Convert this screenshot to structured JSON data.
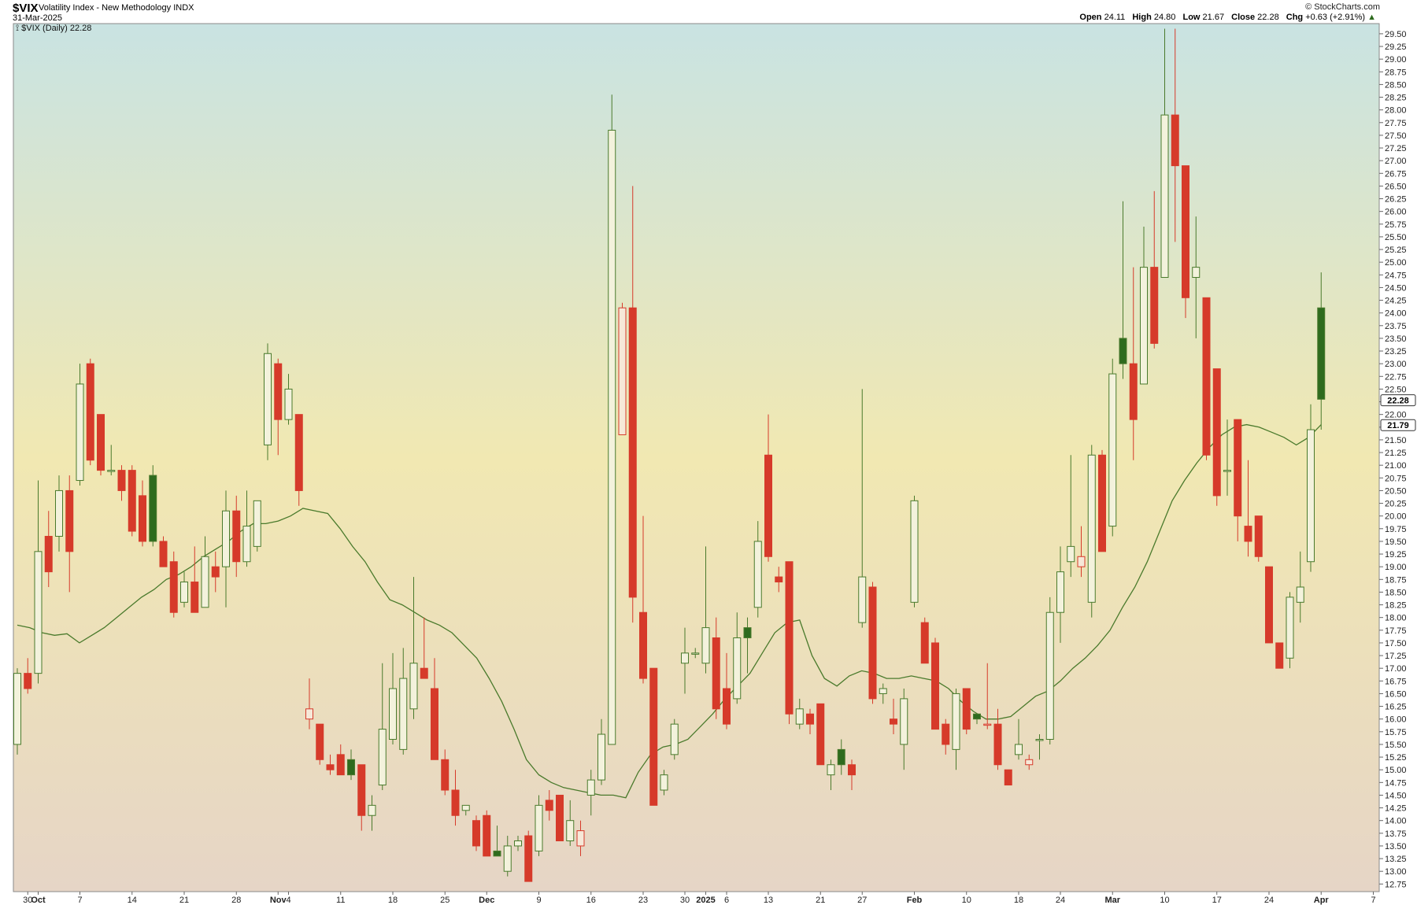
{
  "header": {
    "symbol": "$VIX",
    "description": "Volatility Index - New Methodology",
    "exchange": "INDX",
    "date": "31-Mar-2025",
    "brand": "© StockCharts.com",
    "open_label": "Open",
    "open": "24.11",
    "high_label": "High",
    "high": "24.80",
    "low_label": "Low",
    "low": "21.67",
    "close_label": "Close",
    "close": "22.28",
    "chg_label": "Chg",
    "chg": "+0.63 (+2.91%)",
    "chg_arrow": "▲"
  },
  "legend": {
    "icon": "candlestick-icon",
    "text": "$VIX (Daily) 22.28"
  },
  "colors": {
    "up": "#2e6b1e",
    "down": "#d63a2a",
    "ma": "#4a7a2c",
    "bg_top": "#c9e3e2",
    "bg_mid": "#f1e8b2",
    "bg_bottom": "#e6d5c6"
  },
  "chart_data": {
    "type": "candlestick",
    "title": "$VIX (Daily) 22.28",
    "ylim": [
      12.6,
      29.7
    ],
    "y_ticks": [
      "12.75",
      "13.00",
      "13.25",
      "13.50",
      "13.75",
      "14.00",
      "14.25",
      "14.50",
      "14.75",
      "15.00",
      "15.25",
      "15.50",
      "15.75",
      "16.00",
      "16.25",
      "16.50",
      "16.75",
      "17.00",
      "17.25",
      "17.50",
      "17.75",
      "18.00",
      "18.25",
      "18.50",
      "18.75",
      "19.00",
      "19.25",
      "19.50",
      "19.75",
      "20.00",
      "20.25",
      "20.50",
      "20.75",
      "21.00",
      "21.25",
      "21.50",
      "21.75",
      "22.00",
      "22.25",
      "22.50",
      "22.75",
      "23.00",
      "23.25",
      "23.50",
      "23.75",
      "24.00",
      "24.25",
      "24.50",
      "24.75",
      "25.00",
      "25.25",
      "25.50",
      "25.75",
      "26.00",
      "26.25",
      "26.50",
      "26.75",
      "27.00",
      "27.25",
      "27.50",
      "27.75",
      "28.00",
      "28.25",
      "28.50",
      "28.75",
      "29.00",
      "29.25",
      "29.50"
    ],
    "x_ticks": [
      {
        "i": 1,
        "label": "30",
        "bold": false
      },
      {
        "i": 2,
        "label": "Oct",
        "bold": true
      },
      {
        "i": 6,
        "label": "7",
        "bold": false
      },
      {
        "i": 11,
        "label": "14",
        "bold": false
      },
      {
        "i": 16,
        "label": "21",
        "bold": false
      },
      {
        "i": 21,
        "label": "28",
        "bold": false
      },
      {
        "i": 25,
        "label": "Nov",
        "bold": true
      },
      {
        "i": 26,
        "label": "4",
        "bold": false
      },
      {
        "i": 31,
        "label": "11",
        "bold": false
      },
      {
        "i": 36,
        "label": "18",
        "bold": false
      },
      {
        "i": 41,
        "label": "25",
        "bold": false
      },
      {
        "i": 45,
        "label": "Dec",
        "bold": true
      },
      {
        "i": 50,
        "label": "9",
        "bold": false
      },
      {
        "i": 55,
        "label": "16",
        "bold": false
      },
      {
        "i": 60,
        "label": "23",
        "bold": false
      },
      {
        "i": 64,
        "label": "30",
        "bold": false
      },
      {
        "i": 66,
        "label": "2025",
        "bold": true
      },
      {
        "i": 68,
        "label": "6",
        "bold": false
      },
      {
        "i": 72,
        "label": "13",
        "bold": false
      },
      {
        "i": 77,
        "label": "21",
        "bold": false
      },
      {
        "i": 81,
        "label": "27",
        "bold": false
      },
      {
        "i": 86,
        "label": "Feb",
        "bold": true
      },
      {
        "i": 91,
        "label": "10",
        "bold": false
      },
      {
        "i": 96,
        "label": "18",
        "bold": false
      },
      {
        "i": 100,
        "label": "24",
        "bold": false
      },
      {
        "i": 105,
        "label": "Mar",
        "bold": true
      },
      {
        "i": 110,
        "label": "10",
        "bold": false
      },
      {
        "i": 115,
        "label": "17",
        "bold": false
      },
      {
        "i": 120,
        "label": "24",
        "bold": false
      },
      {
        "i": 125,
        "label": "Apr",
        "bold": true
      },
      {
        "i": 130,
        "label": "7",
        "bold": false
      }
    ],
    "last_price_label": "22.28",
    "last_price": 22.28,
    "ma_label": "21.79",
    "ma_last": 21.79,
    "candles": [
      {
        "o": 15.5,
        "h": 17.0,
        "l": 15.3,
        "c": 16.9
      },
      {
        "o": 16.9,
        "h": 17.2,
        "l": 16.5,
        "c": 16.6
      },
      {
        "o": 16.9,
        "h": 20.7,
        "l": 16.7,
        "c": 19.3
      },
      {
        "o": 19.6,
        "h": 20.1,
        "l": 18.6,
        "c": 18.9
      },
      {
        "o": 19.6,
        "h": 20.8,
        "l": 19.3,
        "c": 20.5
      },
      {
        "o": 20.5,
        "h": 20.8,
        "l": 18.5,
        "c": 19.3
      },
      {
        "o": 20.7,
        "h": 23.0,
        "l": 20.6,
        "c": 22.6
      },
      {
        "o": 23.0,
        "h": 23.1,
        "l": 21.0,
        "c": 21.1
      },
      {
        "o": 22.0,
        "h": 22.0,
        "l": 20.8,
        "c": 20.9
      },
      {
        "o": 20.9,
        "h": 21.4,
        "l": 20.8,
        "c": 20.9
      },
      {
        "o": 20.9,
        "h": 21.0,
        "l": 20.3,
        "c": 20.5
      },
      {
        "o": 20.9,
        "h": 21.0,
        "l": 19.6,
        "c": 19.7
      },
      {
        "o": 20.4,
        "h": 20.7,
        "l": 19.4,
        "c": 19.5
      },
      {
        "o": 20.8,
        "h": 21.0,
        "l": 19.4,
        "c": 19.5
      },
      {
        "o": 19.5,
        "h": 19.6,
        "l": 19.0,
        "c": 19.0
      },
      {
        "o": 19.1,
        "h": 19.3,
        "l": 18.0,
        "c": 18.1
      },
      {
        "o": 18.3,
        "h": 18.9,
        "l": 18.2,
        "c": 18.7
      },
      {
        "o": 18.7,
        "h": 19.4,
        "l": 18.1,
        "c": 18.1
      },
      {
        "o": 18.2,
        "h": 19.6,
        "l": 18.2,
        "c": 19.2
      },
      {
        "o": 19.0,
        "h": 19.3,
        "l": 18.5,
        "c": 18.8
      },
      {
        "o": 19.0,
        "h": 20.5,
        "l": 18.2,
        "c": 20.1
      },
      {
        "o": 20.1,
        "h": 20.4,
        "l": 18.8,
        "c": 19.1
      },
      {
        "o": 19.1,
        "h": 20.5,
        "l": 19.0,
        "c": 19.8
      },
      {
        "o": 19.4,
        "h": 20.3,
        "l": 19.3,
        "c": 20.3
      },
      {
        "o": 21.4,
        "h": 23.4,
        "l": 21.1,
        "c": 23.2
      },
      {
        "o": 23.0,
        "h": 23.1,
        "l": 21.2,
        "c": 21.9
      },
      {
        "o": 21.9,
        "h": 22.8,
        "l": 21.8,
        "c": 22.5
      },
      {
        "o": 22.0,
        "h": 22.0,
        "l": 20.2,
        "c": 20.5
      },
      {
        "o": 16.0,
        "h": 16.8,
        "l": 15.8,
        "c": 16.2
      },
      {
        "o": 15.9,
        "h": 15.9,
        "l": 15.1,
        "c": 15.2
      },
      {
        "o": 15.1,
        "h": 15.3,
        "l": 14.9,
        "c": 15.0
      },
      {
        "o": 15.3,
        "h": 15.5,
        "l": 14.9,
        "c": 14.9
      },
      {
        "o": 15.2,
        "h": 15.4,
        "l": 14.8,
        "c": 14.9
      },
      {
        "o": 15.1,
        "h": 15.1,
        "l": 13.8,
        "c": 14.1
      },
      {
        "o": 14.1,
        "h": 14.5,
        "l": 13.8,
        "c": 14.3
      },
      {
        "o": 14.7,
        "h": 17.1,
        "l": 14.6,
        "c": 15.8
      },
      {
        "o": 15.6,
        "h": 17.3,
        "l": 15.5,
        "c": 16.6
      },
      {
        "o": 15.4,
        "h": 17.4,
        "l": 15.3,
        "c": 16.8
      },
      {
        "o": 16.2,
        "h": 18.8,
        "l": 16.0,
        "c": 17.1
      },
      {
        "o": 17.0,
        "h": 18.0,
        "l": 16.8,
        "c": 16.8
      },
      {
        "o": 16.6,
        "h": 17.2,
        "l": 15.2,
        "c": 15.2
      },
      {
        "o": 15.2,
        "h": 15.4,
        "l": 14.5,
        "c": 14.6
      },
      {
        "o": 14.6,
        "h": 15.0,
        "l": 13.9,
        "c": 14.1
      },
      {
        "o": 14.2,
        "h": 14.3,
        "l": 14.1,
        "c": 14.3
      },
      {
        "o": 14.0,
        "h": 14.1,
        "l": 13.4,
        "c": 13.5
      },
      {
        "o": 14.1,
        "h": 14.2,
        "l": 13.3,
        "c": 13.3
      },
      {
        "o": 13.4,
        "h": 13.9,
        "l": 13.3,
        "c": 13.3
      },
      {
        "o": 13.0,
        "h": 13.7,
        "l": 12.9,
        "c": 13.5
      },
      {
        "o": 13.5,
        "h": 13.7,
        "l": 13.4,
        "c": 13.6
      },
      {
        "o": 13.7,
        "h": 13.8,
        "l": 12.8,
        "c": 12.8
      },
      {
        "o": 13.4,
        "h": 14.5,
        "l": 13.3,
        "c": 14.3
      },
      {
        "o": 14.4,
        "h": 14.6,
        "l": 14.0,
        "c": 14.2
      },
      {
        "o": 14.5,
        "h": 14.5,
        "l": 13.6,
        "c": 13.6
      },
      {
        "o": 13.6,
        "h": 14.4,
        "l": 13.5,
        "c": 14.0
      },
      {
        "o": 13.5,
        "h": 14.0,
        "l": 13.3,
        "c": 13.8
      },
      {
        "o": 14.5,
        "h": 15.0,
        "l": 14.1,
        "c": 14.8
      },
      {
        "o": 14.8,
        "h": 16.0,
        "l": 14.7,
        "c": 15.7
      },
      {
        "o": 15.5,
        "h": 28.3,
        "l": 15.5,
        "c": 27.6
      },
      {
        "o": 21.6,
        "h": 24.2,
        "l": 21.6,
        "c": 24.1
      },
      {
        "o": 24.1,
        "h": 26.5,
        "l": 17.9,
        "c": 18.4
      },
      {
        "o": 18.1,
        "h": 20.0,
        "l": 16.7,
        "c": 16.8
      },
      {
        "o": 17.0,
        "h": 17.0,
        "l": 14.3,
        "c": 14.3
      },
      {
        "o": 14.6,
        "h": 15.0,
        "l": 14.5,
        "c": 14.9
      },
      {
        "o": 15.3,
        "h": 16.0,
        "l": 15.2,
        "c": 15.9
      },
      {
        "o": 17.1,
        "h": 17.8,
        "l": 16.5,
        "c": 17.3
      },
      {
        "o": 17.3,
        "h": 17.4,
        "l": 17.2,
        "c": 17.3
      },
      {
        "o": 17.1,
        "h": 19.4,
        "l": 16.9,
        "c": 17.8
      },
      {
        "o": 17.6,
        "h": 18.0,
        "l": 16.0,
        "c": 16.2
      },
      {
        "o": 16.6,
        "h": 17.3,
        "l": 15.8,
        "c": 15.9
      },
      {
        "o": 16.4,
        "h": 18.1,
        "l": 16.3,
        "c": 17.6
      },
      {
        "o": 17.8,
        "h": 18.0,
        "l": 16.9,
        "c": 17.6
      },
      {
        "o": 18.2,
        "h": 19.9,
        "l": 18.0,
        "c": 19.5
      },
      {
        "o": 21.2,
        "h": 22.0,
        "l": 19.1,
        "c": 19.2
      },
      {
        "o": 18.8,
        "h": 19.0,
        "l": 18.5,
        "c": 18.7
      },
      {
        "o": 19.1,
        "h": 19.1,
        "l": 15.9,
        "c": 16.1
      },
      {
        "o": 15.9,
        "h": 16.4,
        "l": 15.8,
        "c": 16.2
      },
      {
        "o": 16.1,
        "h": 16.2,
        "l": 15.7,
        "c": 15.9
      },
      {
        "o": 16.3,
        "h": 16.3,
        "l": 15.1,
        "c": 15.1
      },
      {
        "o": 14.9,
        "h": 15.2,
        "l": 14.6,
        "c": 15.1
      },
      {
        "o": 15.4,
        "h": 15.6,
        "l": 14.9,
        "c": 15.1
      },
      {
        "o": 15.1,
        "h": 15.2,
        "l": 14.6,
        "c": 14.9
      },
      {
        "o": 17.9,
        "h": 22.5,
        "l": 17.8,
        "c": 18.8
      },
      {
        "o": 18.6,
        "h": 18.7,
        "l": 16.3,
        "c": 16.4
      },
      {
        "o": 16.5,
        "h": 16.7,
        "l": 16.3,
        "c": 16.6
      },
      {
        "o": 16.0,
        "h": 16.4,
        "l": 15.7,
        "c": 15.9
      },
      {
        "o": 15.5,
        "h": 16.6,
        "l": 15.0,
        "c": 16.4
      },
      {
        "o": 18.3,
        "h": 20.4,
        "l": 18.2,
        "c": 20.3
      },
      {
        "o": 17.9,
        "h": 18.0,
        "l": 17.1,
        "c": 17.1
      },
      {
        "o": 17.5,
        "h": 17.6,
        "l": 15.8,
        "c": 15.8
      },
      {
        "o": 15.9,
        "h": 16.0,
        "l": 15.3,
        "c": 15.5
      },
      {
        "o": 15.4,
        "h": 16.6,
        "l": 15.0,
        "c": 16.5
      },
      {
        "o": 16.6,
        "h": 16.6,
        "l": 15.7,
        "c": 15.8
      },
      {
        "o": 16.1,
        "h": 16.1,
        "l": 15.9,
        "c": 16.0
      },
      {
        "o": 15.9,
        "h": 17.1,
        "l": 15.8,
        "c": 15.9
      },
      {
        "o": 15.9,
        "h": 16.2,
        "l": 15.0,
        "c": 15.1
      },
      {
        "o": 15.0,
        "h": 15.0,
        "l": 14.7,
        "c": 14.7
      },
      {
        "o": 15.3,
        "h": 16.0,
        "l": 15.2,
        "c": 15.5
      },
      {
        "o": 15.1,
        "h": 15.3,
        "l": 15.0,
        "c": 15.2
      },
      {
        "o": 15.6,
        "h": 15.7,
        "l": 15.2,
        "c": 15.6
      },
      {
        "o": 15.6,
        "h": 18.4,
        "l": 15.5,
        "c": 18.1
      },
      {
        "o": 18.1,
        "h": 19.4,
        "l": 17.5,
        "c": 18.9
      },
      {
        "o": 19.1,
        "h": 21.2,
        "l": 18.8,
        "c": 19.4
      },
      {
        "o": 19.0,
        "h": 19.8,
        "l": 18.8,
        "c": 19.2
      },
      {
        "o": 18.3,
        "h": 21.4,
        "l": 18.0,
        "c": 21.2
      },
      {
        "o": 21.2,
        "h": 21.3,
        "l": 19.3,
        "c": 19.3
      },
      {
        "o": 19.8,
        "h": 23.1,
        "l": 19.6,
        "c": 22.8
      },
      {
        "o": 23.5,
        "h": 26.2,
        "l": 22.7,
        "c": 23.0
      },
      {
        "o": 23.0,
        "h": 24.9,
        "l": 21.1,
        "c": 21.9
      },
      {
        "o": 22.6,
        "h": 25.7,
        "l": 22.6,
        "c": 24.9
      },
      {
        "o": 24.9,
        "h": 26.4,
        "l": 23.3,
        "c": 23.4
      },
      {
        "o": 24.7,
        "h": 29.6,
        "l": 24.7,
        "c": 27.9
      },
      {
        "o": 27.9,
        "h": 29.6,
        "l": 25.4,
        "c": 26.9
      },
      {
        "o": 26.9,
        "h": 26.9,
        "l": 23.9,
        "c": 24.3
      },
      {
        "o": 24.7,
        "h": 25.9,
        "l": 23.5,
        "c": 24.9
      },
      {
        "o": 24.3,
        "h": 24.3,
        "l": 21.1,
        "c": 21.2
      },
      {
        "o": 22.9,
        "h": 22.9,
        "l": 20.2,
        "c": 20.4
      },
      {
        "o": 20.9,
        "h": 21.9,
        "l": 20.4,
        "c": 20.9
      },
      {
        "o": 21.9,
        "h": 21.9,
        "l": 19.5,
        "c": 20.0
      },
      {
        "o": 19.8,
        "h": 21.1,
        "l": 19.2,
        "c": 19.5
      },
      {
        "o": 20.0,
        "h": 20.0,
        "l": 19.1,
        "c": 19.2
      },
      {
        "o": 19.0,
        "h": 19.0,
        "l": 17.5,
        "c": 17.5
      },
      {
        "o": 17.5,
        "h": 17.5,
        "l": 17.0,
        "c": 17.0
      },
      {
        "o": 17.2,
        "h": 18.5,
        "l": 17.0,
        "c": 18.4
      },
      {
        "o": 18.3,
        "h": 19.3,
        "l": 17.9,
        "c": 18.6
      },
      {
        "o": 19.1,
        "h": 22.2,
        "l": 18.9,
        "c": 21.7
      },
      {
        "o": 24.1,
        "h": 24.8,
        "l": 21.7,
        "c": 22.3
      }
    ],
    "ma": [
      17.85,
      17.8,
      17.7,
      17.65,
      17.68,
      17.5,
      17.65,
      17.8,
      18.0,
      18.2,
      18.4,
      18.55,
      18.75,
      18.85,
      19.0,
      19.2,
      19.35,
      19.5,
      19.7,
      19.85,
      19.85,
      19.9,
      20.0,
      20.15,
      20.1,
      20.05,
      19.75,
      19.4,
      19.1,
      18.7,
      18.35,
      18.25,
      18.1,
      17.95,
      17.85,
      17.7,
      17.45,
      17.2,
      16.8,
      16.35,
      15.8,
      15.2,
      14.9,
      14.75,
      14.65,
      14.6,
      14.55,
      14.5,
      14.5,
      14.45,
      14.95,
      15.3,
      15.45,
      15.5,
      15.6,
      15.85,
      16.1,
      16.4,
      16.65,
      16.9,
      17.3,
      17.7,
      17.9,
      17.95,
      17.25,
      16.8,
      16.65,
      16.85,
      16.95,
      16.9,
      16.8,
      16.8,
      16.85,
      16.8,
      16.75,
      16.6,
      16.35,
      16.15,
      16.0,
      16.0,
      16.05,
      16.25,
      16.45,
      16.55,
      16.75,
      17.0,
      17.2,
      17.45,
      17.75,
      18.2,
      18.6,
      19.1,
      19.7,
      20.3,
      20.7,
      21.05,
      21.35,
      21.6,
      21.75,
      21.8,
      21.75,
      21.65,
      21.55,
      21.4,
      21.55,
      21.8
    ]
  }
}
